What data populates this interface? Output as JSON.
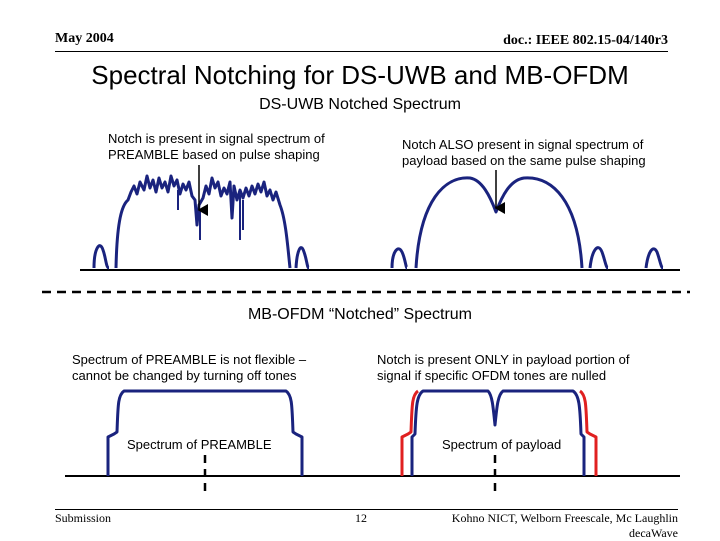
{
  "header": {
    "date": "May 2004",
    "doc_id": "doc.: IEEE 802.15-04/140r3"
  },
  "slide": {
    "title": "Spectral Notching for DS-UWB and MB-OFDM",
    "ds_uwb": {
      "heading": "DS-UWB Notched Spectrum",
      "note_left": "Notch is present in signal spectrum of PREAMBLE based on pulse shaping",
      "note_right": "Notch ALSO present in signal spectrum of payload based on the same pulse shaping"
    },
    "mb_ofdm": {
      "heading": "MB-OFDM “Notched” Spectrum",
      "note_left": "Spectrum of PREAMBLE is not flexible – cannot be changed by turning off tones",
      "note_right": "Notch is present ONLY in payload portion of signal if specific OFDM tones are nulled",
      "label_preamble": "Spectrum of PREAMBLE",
      "label_payload": "Spectrum of payload"
    }
  },
  "footer": {
    "left": "Submission",
    "page": "12",
    "authors_line1": "Kohno NICT, Welborn Freescale, Mc Laughlin",
    "authors_line2": "decaWave"
  },
  "colors": {
    "curve_blue": "#1a237e",
    "notch_red": "#e02020",
    "accent": "#000000"
  }
}
